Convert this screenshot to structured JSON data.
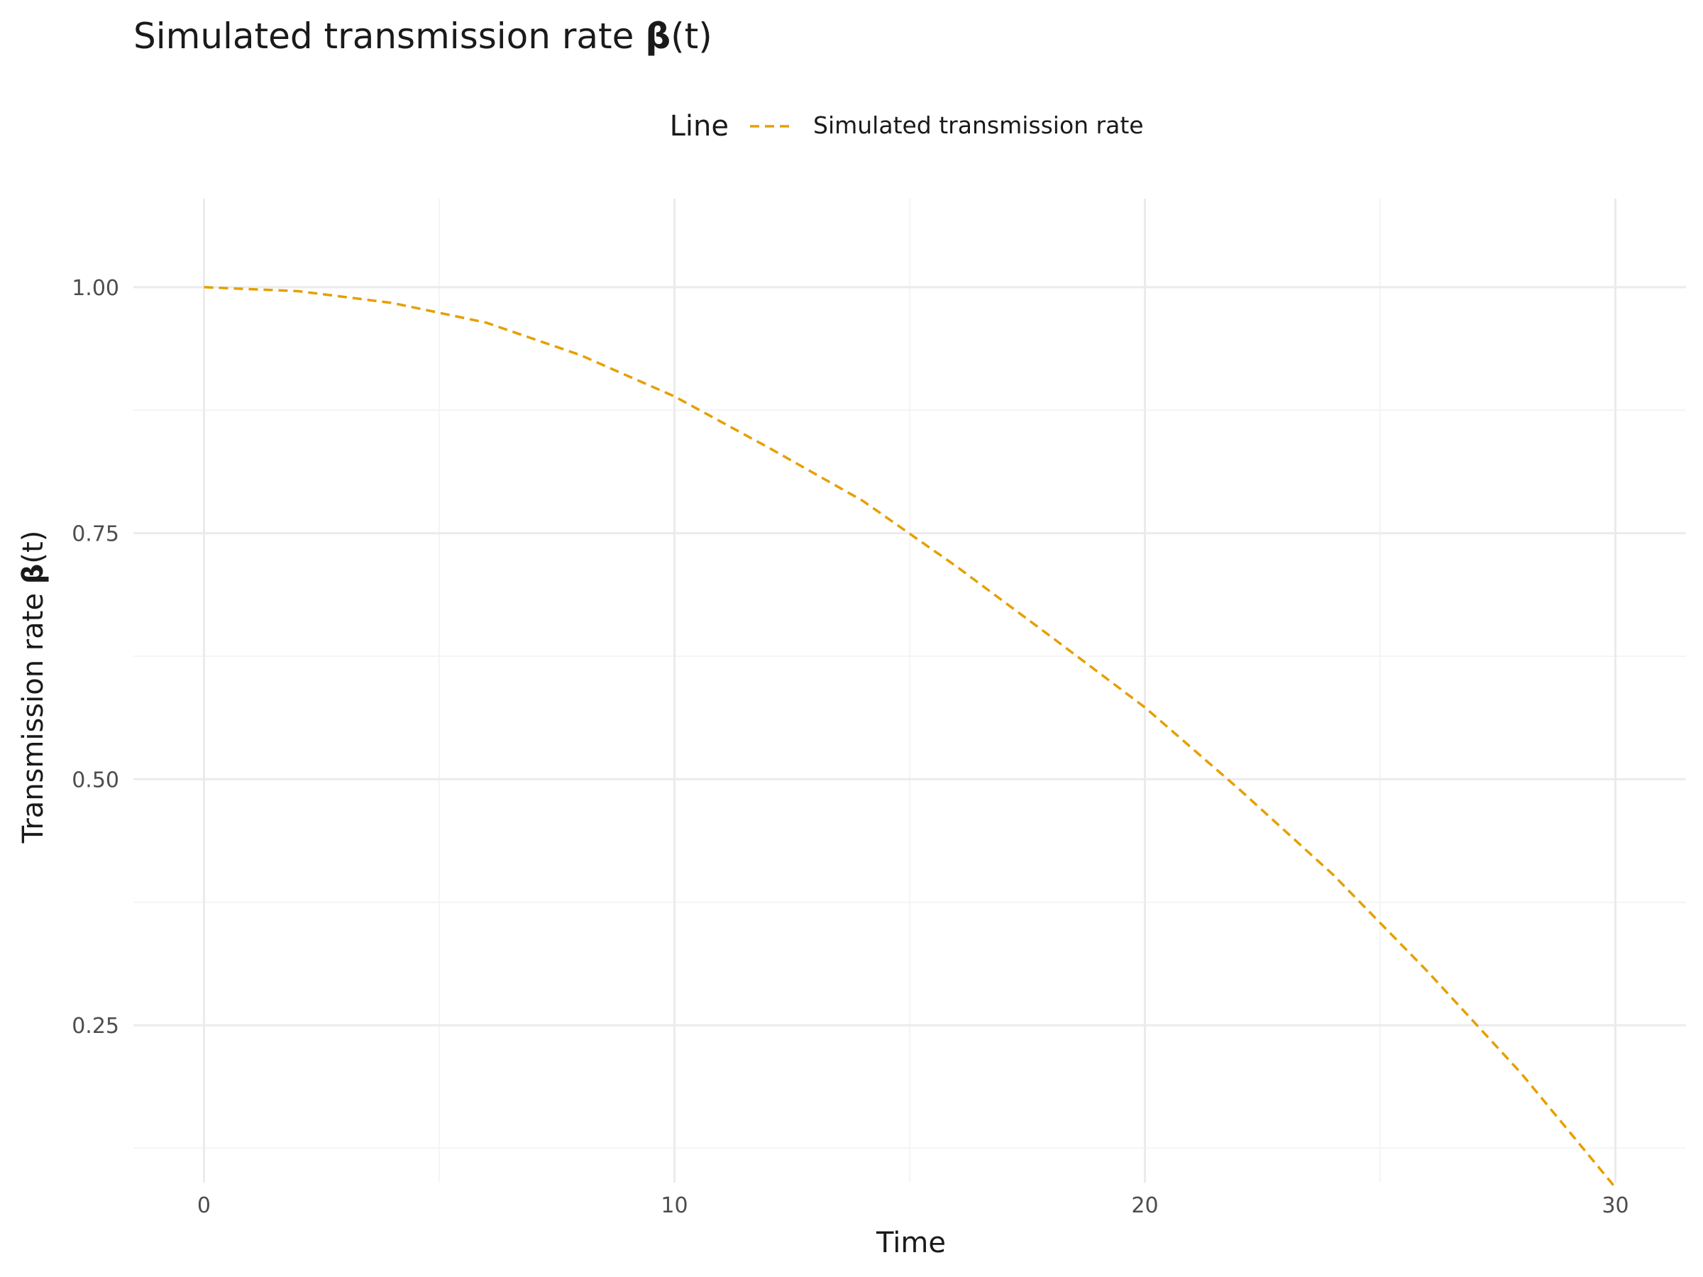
{
  "chart_data": {
    "type": "line",
    "title": {
      "prefix": "Simulated transmission rate ",
      "symbol": "β",
      "suffix": "(t)"
    },
    "xlabel": "Time",
    "ylabel": {
      "prefix": "Transmission rate ",
      "symbol": "β",
      "suffix": "(t)"
    },
    "legend": {
      "title": "Line",
      "position": "top",
      "entries": [
        "Simulated transmission rate"
      ]
    },
    "xlim": [
      -1.5,
      31.5
    ],
    "ylim": [
      0.09,
      1.09
    ],
    "x_ticks": [
      0,
      10,
      20,
      30
    ],
    "x_tick_labels": [
      "0",
      "10",
      "20",
      "30"
    ],
    "x_minor_ticks": [
      5,
      15,
      25
    ],
    "y_ticks": [
      0.25,
      0.5,
      0.75,
      1.0
    ],
    "y_tick_labels": [
      "0.25",
      "0.50",
      "0.75",
      "1.00"
    ],
    "y_minor_ticks": [
      0.125,
      0.375,
      0.625,
      0.875
    ],
    "grid": true,
    "series": [
      {
        "name": "Simulated transmission rate",
        "color": "#E69F00",
        "line_style": "dashed",
        "x": [
          0,
          2,
          4,
          6,
          8,
          10,
          12,
          14,
          16,
          18,
          20,
          22,
          24,
          26,
          28,
          30
        ],
        "y": [
          1.0,
          0.996,
          0.984,
          0.964,
          0.931,
          0.889,
          0.837,
          0.783,
          0.716,
          0.645,
          0.573,
          0.49,
          0.403,
          0.305,
          0.201,
          0.085
        ]
      }
    ]
  }
}
